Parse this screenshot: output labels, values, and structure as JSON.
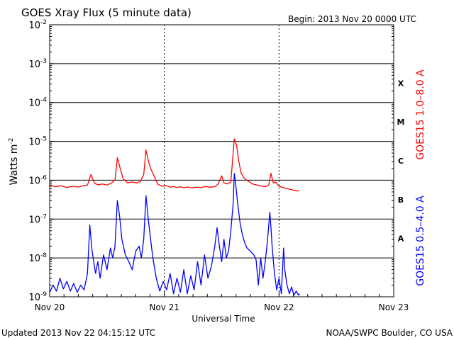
{
  "header": {
    "title": "GOES Xray Flux (5 minute data)",
    "begin": "Begin:  2013 Nov 20 0000 UTC"
  },
  "footer": {
    "updated": "Updated 2013 Nov 22 04:15:12 UTC",
    "credit": "NOAA/SWPC Boulder, CO USA"
  },
  "chart_data": {
    "type": "line",
    "title": "GOES Xray Flux (5 minute data)",
    "xlabel": "Universal Time",
    "ylabel_main": "Watts m",
    "ylabel_sup": "-2",
    "yscale": "log",
    "ylim": [
      1e-09,
      0.01
    ],
    "y_ticks": [
      {
        "base": "10",
        "exp": "-9"
      },
      {
        "base": "10",
        "exp": "-8"
      },
      {
        "base": "10",
        "exp": "-7"
      },
      {
        "base": "10",
        "exp": "-6"
      },
      {
        "base": "10",
        "exp": "-5"
      },
      {
        "base": "10",
        "exp": "-4"
      },
      {
        "base": "10",
        "exp": "-3"
      },
      {
        "base": "10",
        "exp": "-2"
      }
    ],
    "xlim_days": [
      0,
      3
    ],
    "x_ticks": [
      "Nov 20",
      "Nov 21",
      "Nov 22",
      "Nov 23"
    ],
    "flare_classes": [
      {
        "label": "A",
        "y": 1e-08
      },
      {
        "label": "B",
        "y": 1e-07
      },
      {
        "label": "C",
        "y": 1e-06
      },
      {
        "label": "M",
        "y": 1e-05
      },
      {
        "label": "X",
        "y": 0.0001
      }
    ],
    "grid": true,
    "series": [
      {
        "name": "GOES15 1.0–8.0 A",
        "color": "#ff0000",
        "points": [
          [
            0.0,
            7.5e-07
          ],
          [
            0.05,
            6.8e-07
          ],
          [
            0.1,
            7.2e-07
          ],
          [
            0.15,
            6.5e-07
          ],
          [
            0.2,
            7e-07
          ],
          [
            0.25,
            6.7e-07
          ],
          [
            0.3,
            7.3e-07
          ],
          [
            0.33,
            7.5e-07
          ],
          [
            0.36,
            1.4e-06
          ],
          [
            0.39,
            8.5e-07
          ],
          [
            0.42,
            7.6e-07
          ],
          [
            0.46,
            8e-07
          ],
          [
            0.5,
            7.5e-07
          ],
          [
            0.54,
            8.5e-07
          ],
          [
            0.57,
            1e-06
          ],
          [
            0.59,
            3.8e-06
          ],
          [
            0.61,
            2.3e-06
          ],
          [
            0.64,
            1.1e-06
          ],
          [
            0.68,
            8.5e-07
          ],
          [
            0.72,
            9e-07
          ],
          [
            0.76,
            8.5e-07
          ],
          [
            0.79,
            9.2e-07
          ],
          [
            0.82,
            1.4e-06
          ],
          [
            0.84,
            6e-06
          ],
          [
            0.86,
            3.2e-06
          ],
          [
            0.88,
            2e-06
          ],
          [
            0.91,
            1.3e-06
          ],
          [
            0.94,
            8e-07
          ],
          [
            0.98,
            7e-07
          ],
          [
            1.02,
            7.2e-07
          ],
          [
            1.05,
            6.6e-07
          ],
          [
            1.08,
            6.9e-07
          ],
          [
            1.11,
            6.5e-07
          ],
          [
            1.14,
            6.8e-07
          ],
          [
            1.17,
            6.4e-07
          ],
          [
            1.2,
            6.7e-07
          ],
          [
            1.24,
            6.3e-07
          ],
          [
            1.28,
            6.6e-07
          ],
          [
            1.32,
            6.5e-07
          ],
          [
            1.36,
            6.9e-07
          ],
          [
            1.4,
            6.6e-07
          ],
          [
            1.44,
            6.8e-07
          ],
          [
            1.47,
            8e-07
          ],
          [
            1.5,
            1.3e-06
          ],
          [
            1.52,
            8.5e-07
          ],
          [
            1.55,
            8e-07
          ],
          [
            1.58,
            9e-07
          ],
          [
            1.61,
            1.15e-05
          ],
          [
            1.63,
            8e-06
          ],
          [
            1.65,
            3e-06
          ],
          [
            1.67,
            1.5e-06
          ],
          [
            1.7,
            1.1e-06
          ],
          [
            1.73,
            9.5e-07
          ],
          [
            1.77,
            8e-07
          ],
          [
            1.81,
            7.5e-07
          ],
          [
            1.85,
            7e-07
          ],
          [
            1.88,
            6.8e-07
          ],
          [
            1.91,
            7.5e-07
          ],
          [
            1.93,
            1.5e-06
          ],
          [
            1.95,
            8.5e-07
          ],
          [
            1.97,
            9e-07
          ],
          [
            2.0,
            7e-07
          ],
          [
            2.04,
            6.4e-07
          ],
          [
            2.08,
            6e-07
          ],
          [
            2.12,
            5.6e-07
          ],
          [
            2.16,
            5.3e-07
          ],
          [
            2.18,
            5.4e-07
          ]
        ]
      },
      {
        "name": "GOES15 0.5–4.0 A",
        "color": "#0000ff",
        "points": [
          [
            0.0,
            1.3e-09
          ],
          [
            0.03,
            2e-09
          ],
          [
            0.06,
            1.4e-09
          ],
          [
            0.09,
            3e-09
          ],
          [
            0.12,
            1.6e-09
          ],
          [
            0.15,
            2.5e-09
          ],
          [
            0.18,
            1.4e-09
          ],
          [
            0.21,
            2.2e-09
          ],
          [
            0.24,
            1.3e-09
          ],
          [
            0.27,
            2e-09
          ],
          [
            0.3,
            1.5e-09
          ],
          [
            0.33,
            4e-09
          ],
          [
            0.35,
            7e-08
          ],
          [
            0.37,
            1.5e-08
          ],
          [
            0.4,
            4e-09
          ],
          [
            0.42,
            8e-09
          ],
          [
            0.44,
            3e-09
          ],
          [
            0.47,
            1.2e-08
          ],
          [
            0.5,
            5e-09
          ],
          [
            0.53,
            1.8e-08
          ],
          [
            0.55,
            1e-08
          ],
          [
            0.57,
            2e-08
          ],
          [
            0.59,
            3e-07
          ],
          [
            0.61,
            1.2e-07
          ],
          [
            0.63,
            3e-08
          ],
          [
            0.66,
            1.2e-08
          ],
          [
            0.69,
            8e-09
          ],
          [
            0.72,
            5e-09
          ],
          [
            0.75,
            1.5e-08
          ],
          [
            0.78,
            2e-08
          ],
          [
            0.8,
            1e-08
          ],
          [
            0.82,
            3e-08
          ],
          [
            0.84,
            4e-07
          ],
          [
            0.86,
            1e-07
          ],
          [
            0.88,
            3e-08
          ],
          [
            0.9,
            1e-08
          ],
          [
            0.93,
            3e-09
          ],
          [
            0.96,
            1.4e-09
          ],
          [
            0.99,
            2.5e-09
          ],
          [
            1.02,
            1.5e-09
          ],
          [
            1.05,
            4e-09
          ],
          [
            1.08,
            1.2e-09
          ],
          [
            1.11,
            3e-09
          ],
          [
            1.14,
            1.3e-09
          ],
          [
            1.17,
            5e-09
          ],
          [
            1.2,
            1.2e-09
          ],
          [
            1.23,
            3.5e-09
          ],
          [
            1.26,
            1.5e-09
          ],
          [
            1.29,
            8e-09
          ],
          [
            1.32,
            2e-09
          ],
          [
            1.35,
            1.2e-08
          ],
          [
            1.38,
            3e-09
          ],
          [
            1.41,
            6e-09
          ],
          [
            1.44,
            2e-08
          ],
          [
            1.46,
            6e-08
          ],
          [
            1.48,
            2e-08
          ],
          [
            1.5,
            8e-09
          ],
          [
            1.52,
            3e-08
          ],
          [
            1.54,
            1e-08
          ],
          [
            1.56,
            1.5e-08
          ],
          [
            1.58,
            5e-08
          ],
          [
            1.6,
            2.5e-07
          ],
          [
            1.61,
            1.5e-06
          ],
          [
            1.62,
            9e-07
          ],
          [
            1.64,
            2.5e-07
          ],
          [
            1.66,
            8e-08
          ],
          [
            1.68,
            4e-08
          ],
          [
            1.7,
            2.5e-08
          ],
          [
            1.72,
            1.8e-08
          ],
          [
            1.75,
            1.5e-08
          ],
          [
            1.78,
            1.2e-08
          ],
          [
            1.8,
            9e-09
          ],
          [
            1.82,
            2e-09
          ],
          [
            1.84,
            1e-08
          ],
          [
            1.86,
            3e-09
          ],
          [
            1.88,
            8e-09
          ],
          [
            1.9,
            3e-08
          ],
          [
            1.92,
            1.5e-07
          ],
          [
            1.93,
            6e-08
          ],
          [
            1.94,
            2e-08
          ],
          [
            1.96,
            4e-09
          ],
          [
            1.98,
            1.5e-09
          ],
          [
            2.0,
            3e-09
          ],
          [
            2.02,
            1.2e-09
          ],
          [
            2.04,
            1.8e-08
          ],
          [
            2.05,
            5e-09
          ],
          [
            2.07,
            2e-09
          ],
          [
            2.09,
            1.2e-09
          ],
          [
            2.11,
            1.8e-09
          ],
          [
            2.13,
            1.1e-09
          ],
          [
            2.15,
            1.4e-09
          ],
          [
            2.17,
            1.1e-09
          ],
          [
            2.18,
            1.2e-09
          ]
        ]
      }
    ]
  }
}
